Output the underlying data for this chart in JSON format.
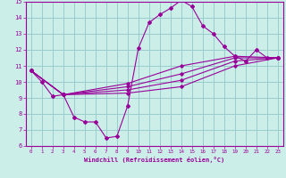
{
  "xlabel": "Windchill (Refroidissement éolien,°C)",
  "xlim": [
    -0.5,
    23.5
  ],
  "ylim": [
    6,
    15
  ],
  "bg_color": "#cceee8",
  "grid_color": "#99cccc",
  "line_color": "#990099",
  "main_x": [
    0,
    1,
    2,
    3,
    4,
    5,
    6,
    7,
    8,
    9,
    10,
    11,
    12,
    13,
    14,
    15,
    16,
    17,
    18,
    19,
    20,
    21,
    22,
    23
  ],
  "main_y": [
    10.7,
    10.0,
    9.1,
    9.2,
    7.8,
    7.5,
    7.5,
    6.5,
    6.6,
    8.5,
    12.1,
    13.7,
    14.2,
    14.6,
    15.1,
    14.7,
    13.5,
    13.0,
    12.2,
    11.6,
    11.3,
    12.0,
    11.5,
    11.5
  ],
  "bundle_lines": [
    {
      "x": [
        0,
        3,
        9,
        14,
        19,
        23
      ],
      "y": [
        10.7,
        9.2,
        9.3,
        9.7,
        11.0,
        11.5
      ]
    },
    {
      "x": [
        0,
        3,
        9,
        14,
        19,
        23
      ],
      "y": [
        10.7,
        9.2,
        9.5,
        10.1,
        11.3,
        11.5
      ]
    },
    {
      "x": [
        0,
        3,
        9,
        14,
        19,
        23
      ],
      "y": [
        10.7,
        9.2,
        9.7,
        10.5,
        11.5,
        11.5
      ]
    },
    {
      "x": [
        0,
        3,
        9,
        14,
        19,
        23
      ],
      "y": [
        10.7,
        9.2,
        9.9,
        11.0,
        11.6,
        11.5
      ]
    }
  ],
  "xticks": [
    0,
    1,
    2,
    3,
    4,
    5,
    6,
    7,
    8,
    9,
    10,
    11,
    12,
    13,
    14,
    15,
    16,
    17,
    18,
    19,
    20,
    21,
    22,
    23
  ],
  "yticks": [
    6,
    7,
    8,
    9,
    10,
    11,
    12,
    13,
    14,
    15
  ]
}
